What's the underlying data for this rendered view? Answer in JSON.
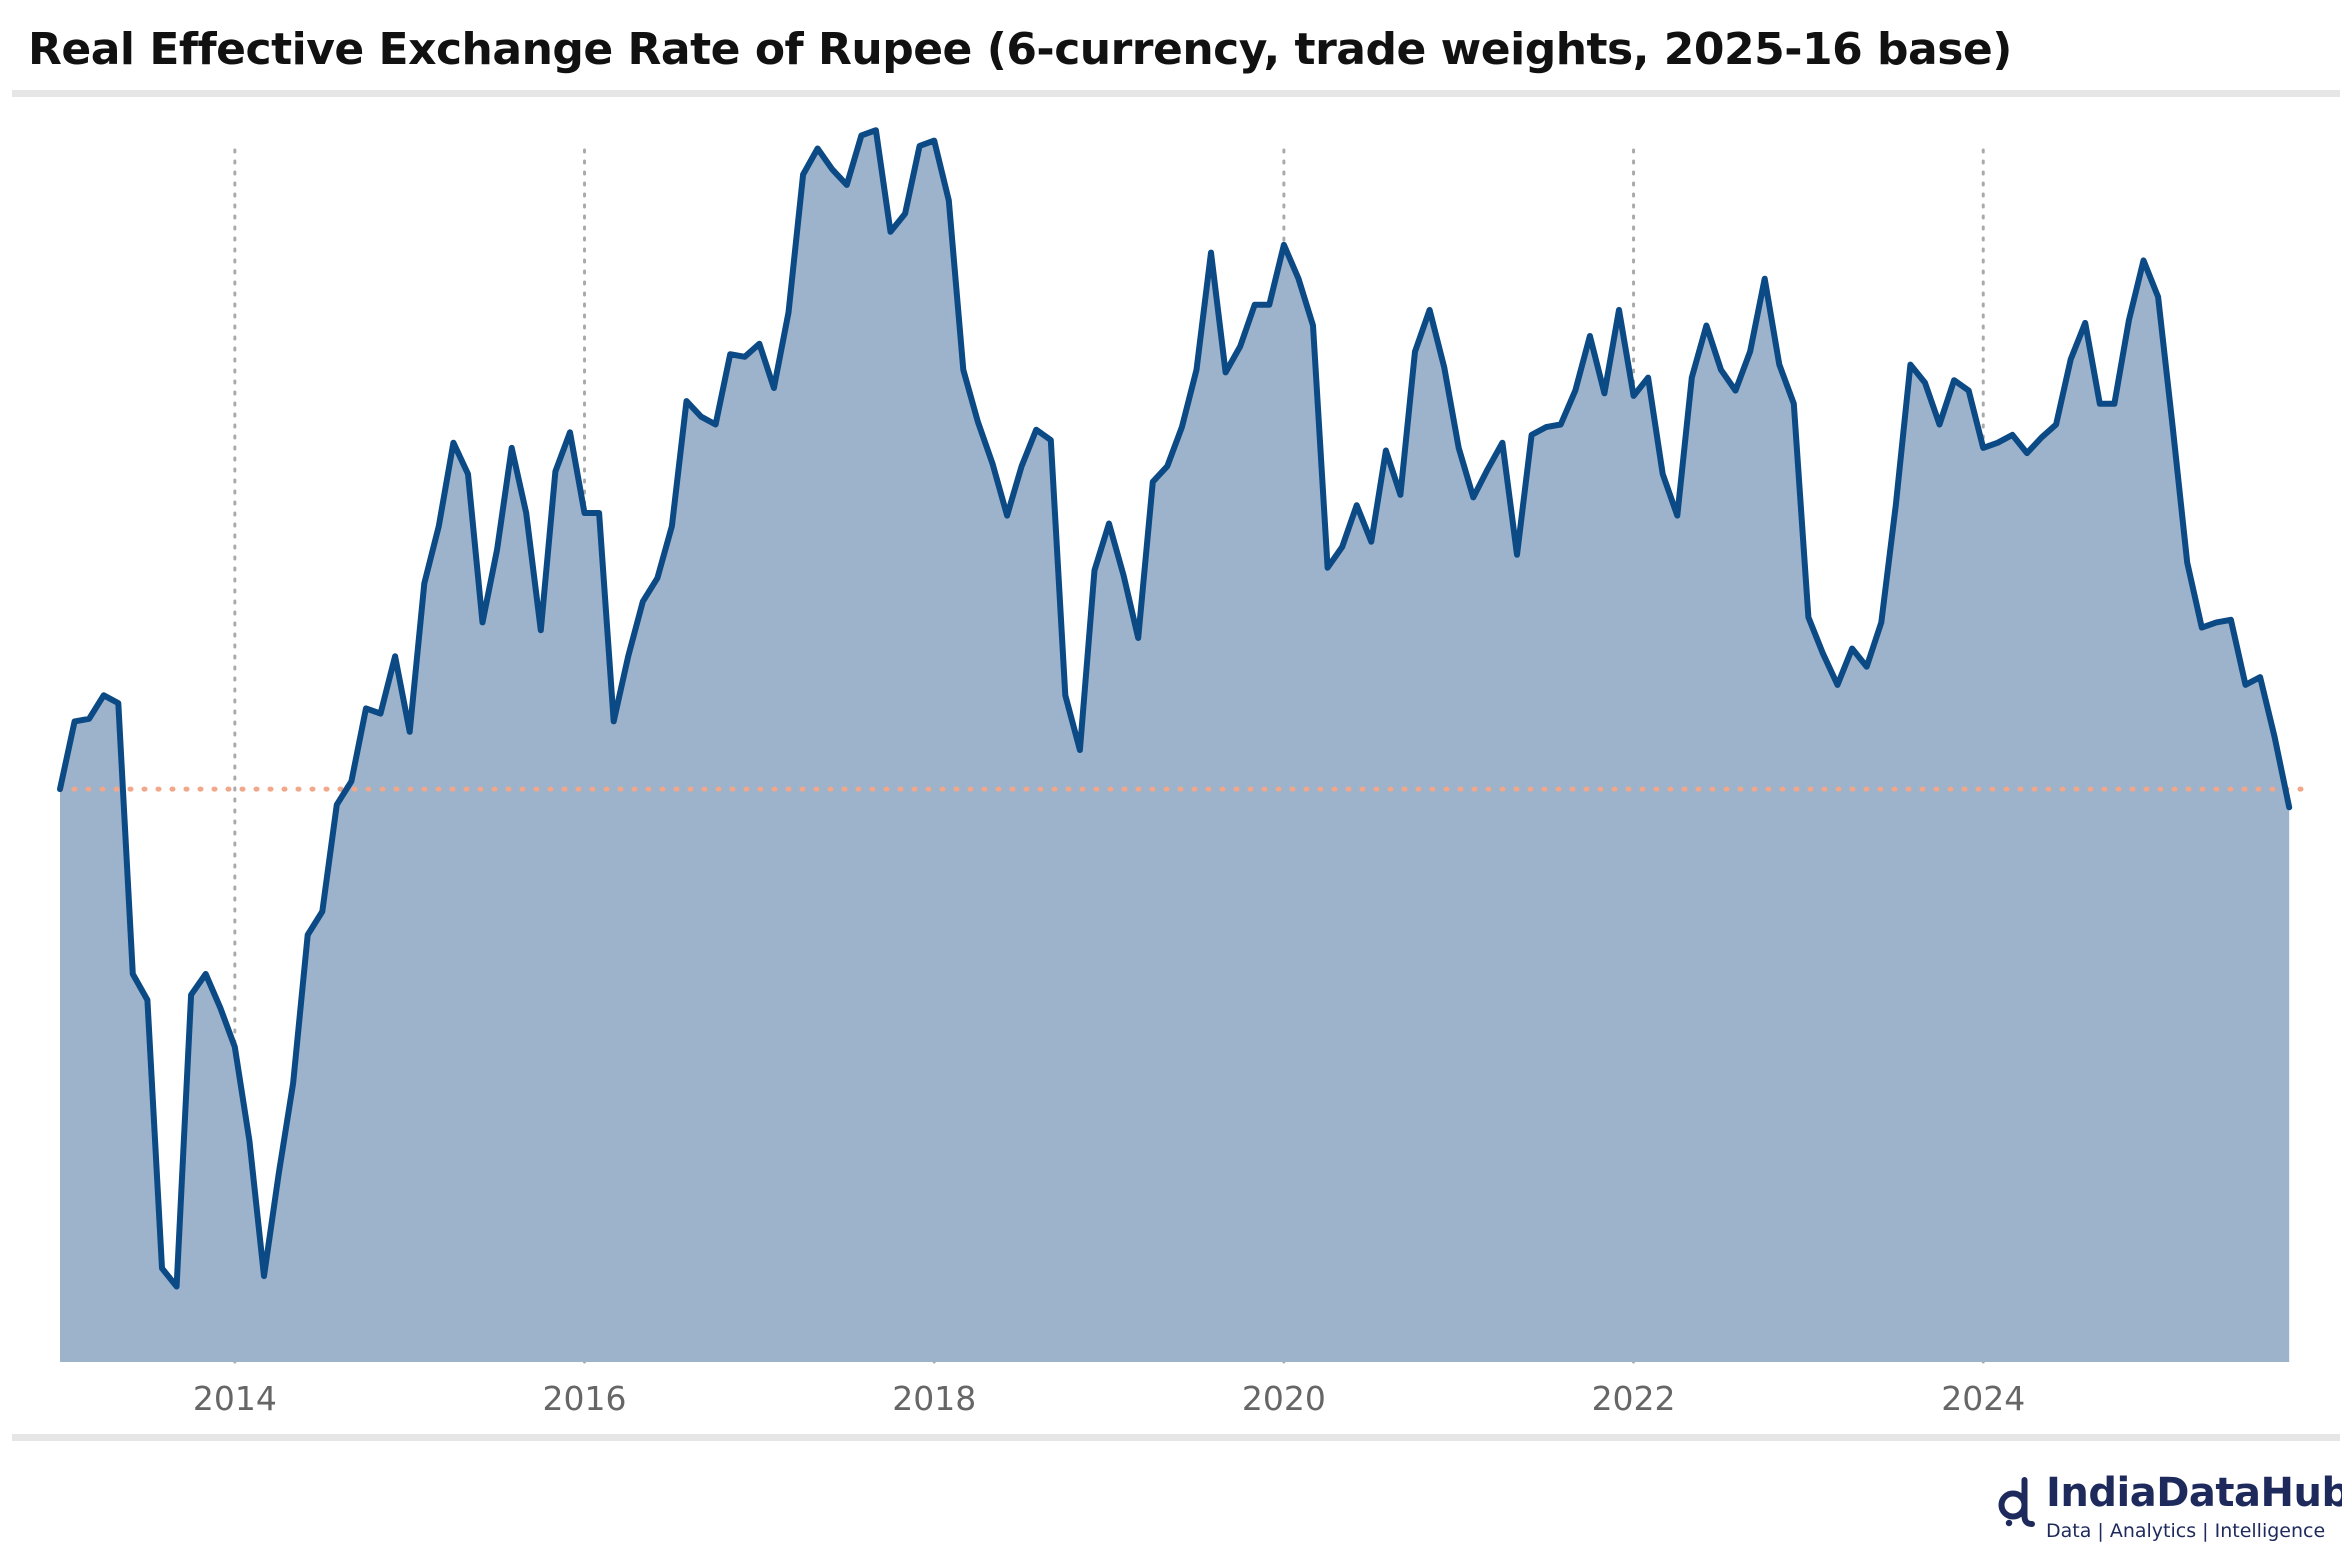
{
  "title": "Real Effective Exchange Rate of Rupee (6-currency, trade weights, 2025-16 base)",
  "logo": {
    "name": "IndiaDataHub",
    "tagline": "Data | Analytics | Intelligence",
    "icon": "india-data-hub-logo-icon"
  },
  "colors": {
    "line": "#0c4a85",
    "area": "#9db2cb",
    "reference_line": "#f0a78a",
    "gridline": "#aaaaaa",
    "logo": "#1f2a5c"
  },
  "chart_data": {
    "type": "area",
    "title": "Real Effective Exchange Rate of Rupee (6-currency, trade weights, 2025-16 base)",
    "xlabel": "",
    "ylabel": "",
    "x_ticks": [
      "2014",
      "2016",
      "2018",
      "2020",
      "2022",
      "2024"
    ],
    "y_axis_labels_shown": false,
    "xlim": [
      "2013-01",
      "2025-10"
    ],
    "ylim": [
      78,
      126
    ],
    "reference_line": 100,
    "grid": {
      "vertical": true,
      "horizontal": false,
      "style": "dotted"
    },
    "legend": "none",
    "series": [
      {
        "x": [
          "2013-01",
          "2013-02",
          "2013-03",
          "2013-04",
          "2013-05",
          "2013-06",
          "2013-07",
          "2013-08",
          "2013-09",
          "2013-10",
          "2013-11",
          "2013-12",
          "2014-01",
          "2014-02",
          "2014-03",
          "2014-04",
          "2014-05",
          "2014-06",
          "2014-07",
          "2014-08",
          "2014-09",
          "2014-10",
          "2014-11",
          "2014-12",
          "2015-01",
          "2015-02",
          "2015-03",
          "2015-04",
          "2015-05",
          "2015-06",
          "2015-07",
          "2015-08",
          "2015-09",
          "2015-10",
          "2015-11",
          "2015-12",
          "2016-01",
          "2016-02",
          "2016-03",
          "2016-04",
          "2016-05",
          "2016-06",
          "2016-07",
          "2016-08",
          "2016-09",
          "2016-10",
          "2016-11",
          "2016-12",
          "2017-01",
          "2017-02",
          "2017-03",
          "2017-04",
          "2017-05",
          "2017-06",
          "2017-07",
          "2017-08",
          "2017-09",
          "2017-10",
          "2017-11",
          "2017-12",
          "2018-01",
          "2018-02",
          "2018-03",
          "2018-04",
          "2018-05",
          "2018-06",
          "2018-07",
          "2018-08",
          "2018-09",
          "2018-10",
          "2018-11",
          "2018-12",
          "2019-01",
          "2019-02",
          "2019-03",
          "2019-04",
          "2019-05",
          "2019-06",
          "2019-07",
          "2019-08",
          "2019-09",
          "2019-10",
          "2019-11",
          "2019-12",
          "2020-01",
          "2020-02",
          "2020-03",
          "2020-04",
          "2020-05",
          "2020-06",
          "2020-07",
          "2020-08",
          "2020-09",
          "2020-10",
          "2020-11",
          "2020-12",
          "2021-01",
          "2021-02",
          "2021-03",
          "2021-04",
          "2021-05",
          "2021-06",
          "2021-07",
          "2021-08",
          "2021-09",
          "2021-10",
          "2021-11",
          "2021-12",
          "2022-01",
          "2022-02",
          "2022-03",
          "2022-04",
          "2022-05",
          "2022-06",
          "2022-07",
          "2022-08",
          "2022-09",
          "2022-10",
          "2022-11",
          "2022-12",
          "2023-01",
          "2023-02",
          "2023-03",
          "2023-04",
          "2023-05",
          "2023-06",
          "2023-07",
          "2023-08",
          "2023-09",
          "2023-10",
          "2023-11",
          "2023-12",
          "2024-01",
          "2024-02",
          "2024-03",
          "2024-04",
          "2024-05",
          "2024-06",
          "2024-07",
          "2024-08",
          "2024-09",
          "2024-10",
          "2024-11",
          "2024-12",
          "2025-01",
          "2025-02",
          "2025-03",
          "2025-04",
          "2025-05",
          "2025-06",
          "2025-07",
          "2025-08",
          "2025-09",
          "2025-10"
        ],
        "y": [
          100.0,
          102.6,
          102.7,
          103.6,
          103.3,
          92.9,
          91.9,
          81.6,
          80.9,
          92.1,
          92.9,
          91.6,
          90.1,
          86.5,
          81.3,
          85.2,
          88.7,
          94.4,
          95.3,
          99.4,
          100.3,
          103.1,
          102.9,
          105.1,
          102.2,
          107.9,
          110.1,
          113.3,
          112.1,
          106.4,
          109.2,
          113.1,
          110.6,
          106.1,
          112.2,
          113.7,
          110.6,
          110.6,
          102.6,
          105.1,
          107.2,
          108.1,
          110.1,
          114.9,
          114.3,
          114.0,
          116.7,
          116.6,
          117.1,
          115.4,
          118.3,
          123.6,
          124.6,
          123.8,
          123.2,
          125.1,
          125.3,
          121.4,
          122.1,
          124.7,
          124.9,
          122.6,
          116.1,
          114.1,
          112.5,
          110.5,
          112.4,
          113.8,
          113.4,
          103.6,
          101.5,
          108.4,
          110.2,
          108.2,
          105.8,
          111.8,
          112.4,
          113.9,
          116.1,
          120.6,
          116.0,
          117.0,
          118.6,
          118.6,
          120.9,
          119.6,
          117.8,
          108.5,
          109.3,
          110.9,
          109.5,
          113.0,
          111.3,
          116.8,
          118.4,
          116.2,
          113.1,
          111.2,
          112.3,
          113.3,
          109.0,
          113.6,
          113.9,
          114.0,
          115.3,
          117.4,
          115.2,
          118.4,
          115.1,
          115.8,
          112.1,
          110.5,
          115.8,
          117.8,
          116.1,
          115.3,
          116.8,
          119.6,
          116.3,
          114.8,
          106.6,
          105.2,
          104.0,
          105.4,
          104.7,
          106.4,
          110.9,
          116.3,
          115.6,
          114.0,
          115.7,
          115.3,
          113.1,
          113.3,
          113.6,
          112.9,
          113.5,
          114.0,
          116.5,
          117.9,
          114.8,
          114.8,
          118.0,
          120.3,
          118.9,
          113.9,
          108.7,
          106.2,
          106.4,
          106.5,
          104.0,
          104.3,
          102.0,
          99.3
        ]
      }
    ]
  }
}
